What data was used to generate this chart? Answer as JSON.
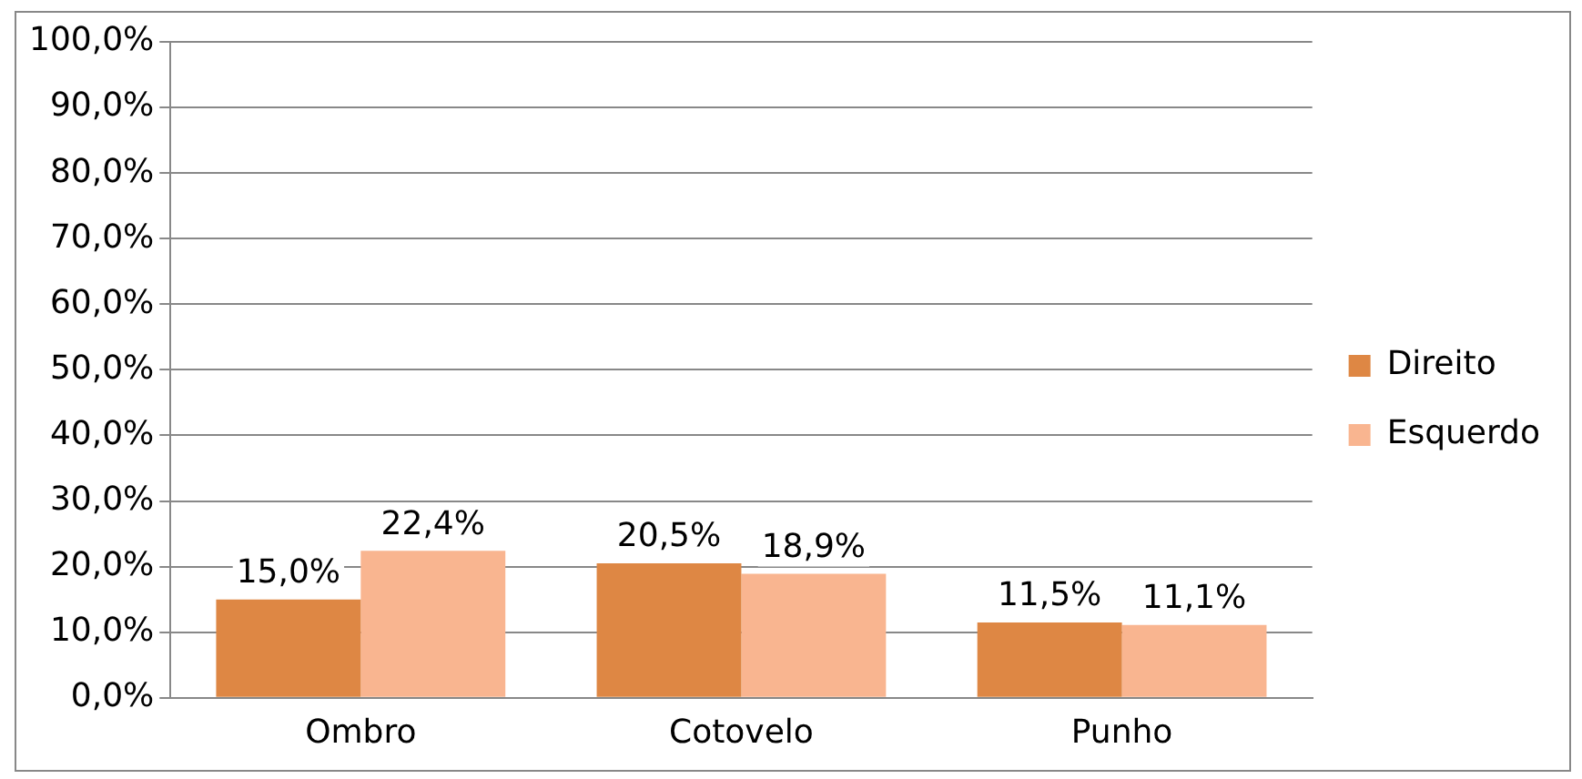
{
  "chart_data": {
    "type": "bar",
    "categories": [
      "Ombro",
      "Cotovelo",
      "Punho"
    ],
    "series": [
      {
        "name": "Direito",
        "color": "#de8744",
        "values": [
          15.0,
          20.5,
          11.5
        ],
        "value_labels": [
          "15,0%",
          "20,5%",
          "11,5%"
        ]
      },
      {
        "name": "Esquerdo",
        "color": "#f9b590",
        "values": [
          22.4,
          18.9,
          11.1
        ],
        "value_labels": [
          "22,4%",
          "18,9%",
          "11,1%"
        ]
      }
    ],
    "ylim": [
      0,
      100
    ],
    "yticks": [
      {
        "value": 0,
        "label": "0,0%"
      },
      {
        "value": 10,
        "label": "10,0%"
      },
      {
        "value": 20,
        "label": "20,0%"
      },
      {
        "value": 30,
        "label": "30,0%"
      },
      {
        "value": 40,
        "label": "40,0%"
      },
      {
        "value": 50,
        "label": "50,0%"
      },
      {
        "value": 60,
        "label": "60,0%"
      },
      {
        "value": 70,
        "label": "70,0%"
      },
      {
        "value": 80,
        "label": "80,0%"
      },
      {
        "value": 90,
        "label": "90,0%"
      },
      {
        "value": 100,
        "label": "100,0%"
      }
    ],
    "grid": "y",
    "legend": "right"
  }
}
